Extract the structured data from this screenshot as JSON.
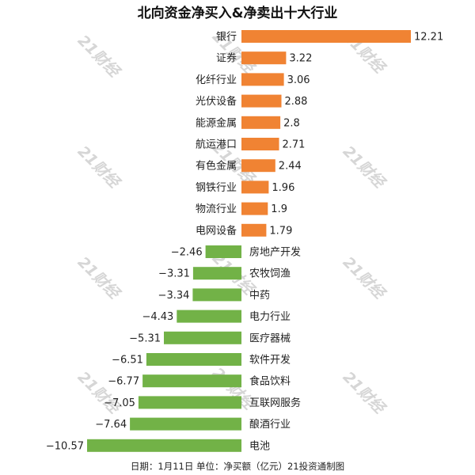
{
  "chart_data": {
    "type": "bar",
    "orientation": "horizontal",
    "title": "北向资金净买入&净卖出十大行业",
    "categories": [
      "银行",
      "证券",
      "化纤行业",
      "光伏设备",
      "能源金属",
      "航运港口",
      "有色金属",
      "钢铁行业",
      "物流行业",
      "电网设备",
      "房地产开发",
      "农牧饲渔",
      "中药",
      "电力行业",
      "医疗器械",
      "软件开发",
      "食品饮料",
      "互联网服务",
      "酿酒行业",
      "电池"
    ],
    "values": [
      12.21,
      3.22,
      3.06,
      2.88,
      2.8,
      2.71,
      2.44,
      1.96,
      1.9,
      1.79,
      -2.46,
      -3.31,
      -3.34,
      -4.43,
      -5.31,
      -6.51,
      -6.77,
      -7.05,
      -7.64,
      -10.57
    ],
    "value_labels": [
      "12.21",
      "3.22",
      "3.06",
      "2.88",
      "2.8",
      "2.71",
      "2.44",
      "1.96",
      "1.9",
      "1.79",
      "−2.46",
      "−3.31",
      "−3.34",
      "−4.43",
      "−5.31",
      "−6.51",
      "−6.77",
      "−7.05",
      "−7.64",
      "−10.57"
    ],
    "xlim": [
      -10.57,
      12.21
    ],
    "grid": false,
    "legend": "none",
    "colors": {
      "positive": "#f08333",
      "negative": "#72b247"
    }
  },
  "footer": {
    "note": "日期：1月11日 单位：净买额（亿元）21投资通制图"
  },
  "watermark": "21财经"
}
